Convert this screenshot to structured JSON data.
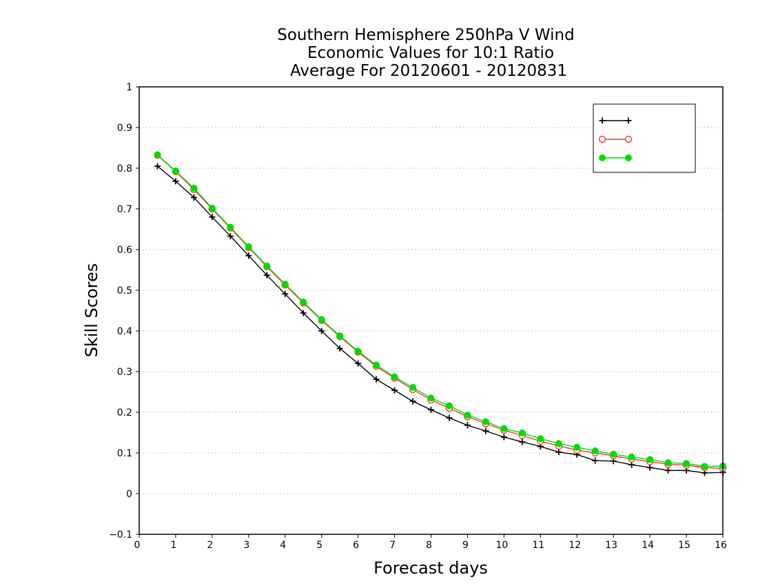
{
  "chart_data": {
    "type": "line",
    "title_lines": [
      "Southern Hemisphere 250hPa V Wind",
      "Economic Values for 10:1 Ratio",
      "Average For 20120601 - 20120831"
    ],
    "xlabel": "Forecast days",
    "ylabel": "Skill Scores",
    "xlim": [
      0,
      16
    ],
    "ylim": [
      -0.1,
      1
    ],
    "xticks": [
      "0",
      "1",
      "2",
      "3",
      "4",
      "5",
      "6",
      "7",
      "8",
      "9",
      "10",
      "11",
      "12",
      "13",
      "14",
      "15",
      "16"
    ],
    "yticks": [
      "−0.1",
      "0",
      "0.1",
      "0.2",
      "0.3",
      "0.4",
      "0.5",
      "0.6",
      "0.7",
      "0.8",
      "0.9",
      "1"
    ],
    "grid": "horizontal dotted",
    "legend_position": "top-right",
    "x": [
      0.5,
      1,
      1.5,
      2,
      2.5,
      3,
      3.5,
      4,
      4.5,
      5,
      5.5,
      6,
      6.5,
      7,
      7.5,
      8,
      8.5,
      9,
      9.5,
      10,
      10.5,
      11,
      11.5,
      12,
      12.5,
      13,
      13.5,
      14,
      14.5,
      15,
      15.5,
      16
    ],
    "series": [
      {
        "name": "",
        "color": "#000000",
        "marker": "plus",
        "values": [
          0.805,
          0.768,
          0.728,
          0.68,
          0.633,
          0.585,
          0.537,
          0.491,
          0.444,
          0.4,
          0.357,
          0.32,
          0.281,
          0.254,
          0.227,
          0.206,
          0.186,
          0.168,
          0.154,
          0.139,
          0.127,
          0.116,
          0.102,
          0.096,
          0.081,
          0.08,
          0.071,
          0.064,
          0.057,
          0.057,
          0.051,
          0.052
        ]
      },
      {
        "name": "",
        "color": "#ff3333",
        "marker": "open-circle",
        "values": [
          0.832,
          0.792,
          0.748,
          0.7,
          0.653,
          0.605,
          0.558,
          0.513,
          0.469,
          0.426,
          0.386,
          0.348,
          0.313,
          0.284,
          0.256,
          0.23,
          0.21,
          0.189,
          0.172,
          0.156,
          0.143,
          0.129,
          0.117,
          0.107,
          0.1,
          0.093,
          0.085,
          0.079,
          0.072,
          0.07,
          0.064,
          0.062
        ]
      },
      {
        "name": "",
        "color": "#00dd00",
        "marker": "filled-circle",
        "values": [
          0.833,
          0.793,
          0.751,
          0.702,
          0.655,
          0.607,
          0.56,
          0.515,
          0.471,
          0.428,
          0.388,
          0.35,
          0.316,
          0.287,
          0.261,
          0.235,
          0.216,
          0.193,
          0.177,
          0.16,
          0.149,
          0.135,
          0.123,
          0.114,
          0.105,
          0.097,
          0.09,
          0.084,
          0.076,
          0.074,
          0.067,
          0.068
        ]
      }
    ]
  }
}
